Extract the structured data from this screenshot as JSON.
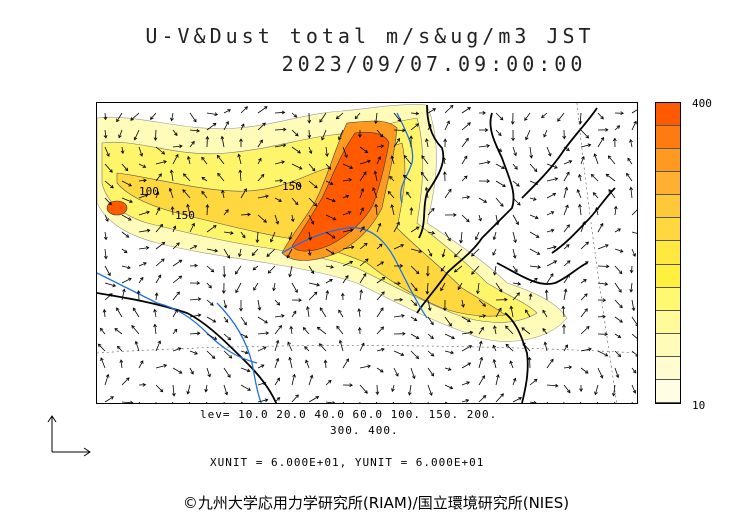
{
  "header": {
    "title_line1": "U-V&Dust total m/s&ug/m3 JST",
    "title_line2": "2023/09/07.09:00:00"
  },
  "colorbar": {
    "max_label": "400",
    "min_label": "10",
    "colors": [
      "#ff5a00",
      "#ff7a10",
      "#ff9a20",
      "#ffb030",
      "#ffc838",
      "#ffd840",
      "#ffe840",
      "#fff040",
      "#fff870",
      "#fffa9a",
      "#fffbb8",
      "#fffcd0",
      "#fffde4"
    ]
  },
  "map_labels": {
    "contour_100a": "100",
    "contour_150a": "150",
    "contour_150b": "150"
  },
  "levels": {
    "line1": "lev= 10.0 20.0 40.0 60.0 100. 150. 200.",
    "line2": "300. 400."
  },
  "units": {
    "line": "XUNIT = 6.000E+01, YUNIT = 6.000E+01"
  },
  "credit": "©九州大学応用力学研究所(RIAM)/国立環境研究所(NIES)",
  "colors": {
    "coast": "#000000",
    "river": "#1f6fe0",
    "dust_max": "#ff5a00",
    "dust_min": "#fffde4"
  }
}
